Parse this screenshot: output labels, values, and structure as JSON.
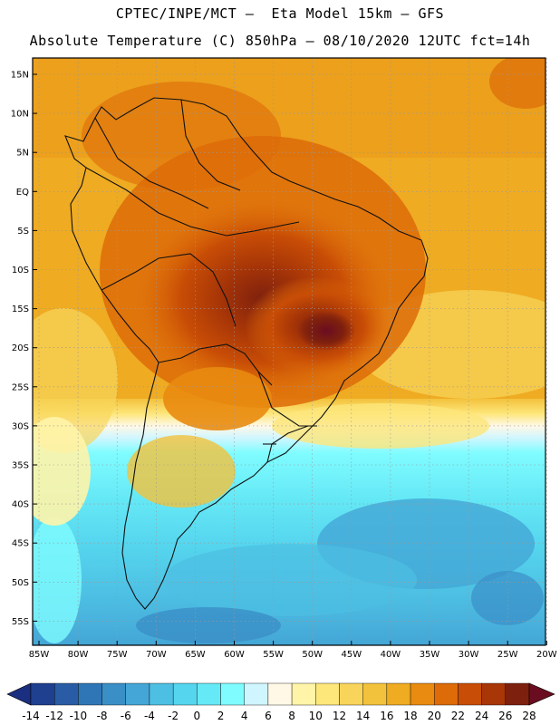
{
  "header": {
    "title_line1": "CPTEC/INPE/MCT –  Eta Model 15km – GFS",
    "title_line2": "Absolute Temperature (C) 850hPa – 08/10/2020 12UTC fct=14h"
  },
  "axes": {
    "lat_labels": [
      "15N",
      "10N",
      "5N",
      "EQ",
      "5S",
      "10S",
      "15S",
      "20S",
      "25S",
      "30S",
      "35S",
      "40S",
      "45S",
      "50S",
      "55S"
    ],
    "lon_labels": [
      "85W",
      "80W",
      "75W",
      "70W",
      "65W",
      "60W",
      "55W",
      "50W",
      "45W",
      "40W",
      "35W",
      "30W",
      "25W",
      "20W"
    ]
  },
  "colorbar": {
    "labels": [
      "-14",
      "-12",
      "-10",
      "-8",
      "-6",
      "-4",
      "-2",
      "0",
      "2",
      "4",
      "6",
      "8",
      "10",
      "12",
      "14",
      "16",
      "18",
      "20",
      "22",
      "24",
      "26",
      "28"
    ],
    "colors": [
      "#1f3f8f",
      "#2a5ca5",
      "#2f76b6",
      "#3a8fc7",
      "#44a6d6",
      "#4dbfe3",
      "#55d5ee",
      "#66e9f6",
      "#7ffcff",
      "#cff6ff",
      "#fff8e6",
      "#fff4a8",
      "#fde67a",
      "#f8d55a",
      "#f3c23c",
      "#efab22",
      "#e98b10",
      "#dd6b08",
      "#c84d06",
      "#a83607",
      "#7e200e"
    ],
    "under_color": "#1a2f80",
    "over_color": "#6b0d20"
  },
  "legend": {
    "field": "Absolute Temperature (C) 850hPa",
    "min": -14,
    "max": 28,
    "step": 2
  }
}
